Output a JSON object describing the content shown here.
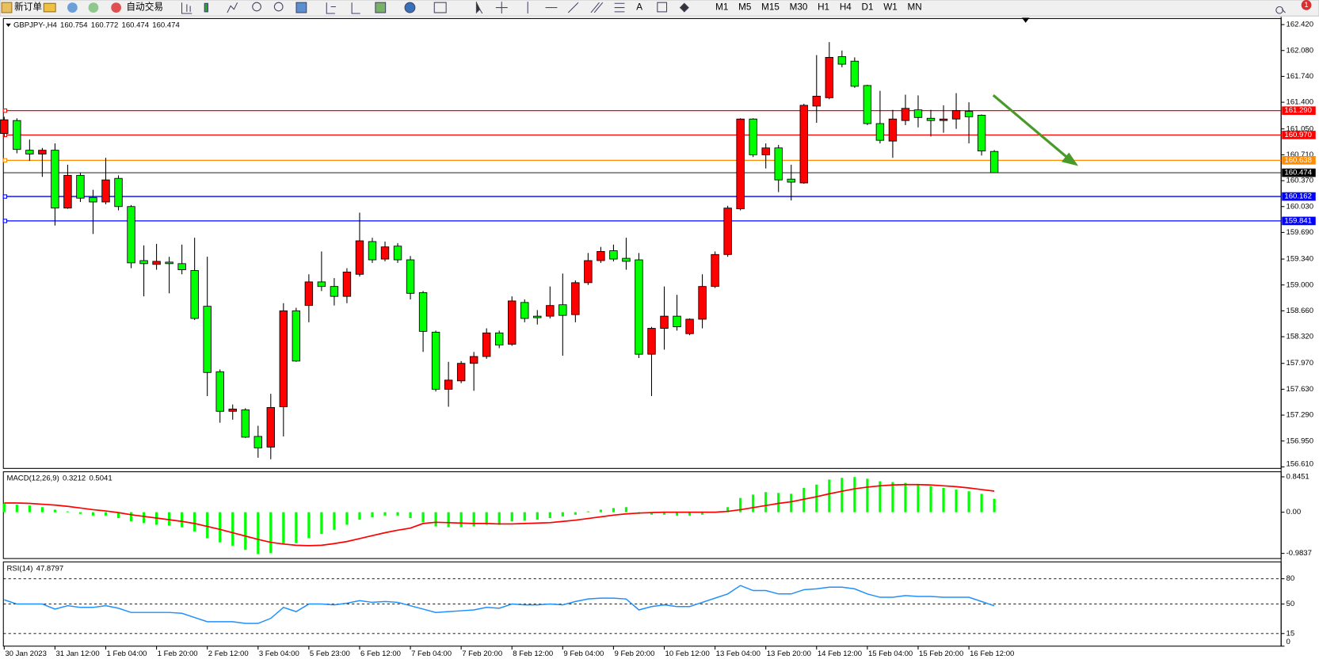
{
  "toolbar": {
    "new_order": "新订单",
    "auto_trading": "自动交易",
    "timeframes": [
      "M1",
      "M5",
      "M15",
      "M30",
      "H1",
      "H4",
      "D1",
      "W1",
      "MN"
    ],
    "text_tool": "A",
    "notifications": 1
  },
  "chart_data": [
    {
      "type": "candlestick",
      "title": "GBPJPY-,H4",
      "up_color": "#ff0000",
      "down_color": "#00ff00",
      "categories": [
        "30 Jan 2023",
        null,
        null,
        null,
        "31 Jan 12:00",
        null,
        null,
        null,
        "1 Feb 04:00",
        null,
        null,
        null,
        "1 Feb 20:00",
        null,
        null,
        null,
        "2 Feb 12:00",
        null,
        null,
        null,
        "3 Feb 04:00",
        null,
        null,
        null,
        "5 Feb 23:00",
        null,
        null,
        null,
        "6 Feb 12:00",
        null,
        null,
        null,
        "7 Feb 04:00",
        null,
        null,
        null,
        "7 Feb 20:00",
        null,
        null,
        null,
        "8 Feb 12:00",
        null,
        null,
        null,
        "9 Feb 04:00",
        null,
        null,
        null,
        "9 Feb 20:00",
        null,
        null,
        null,
        "10 Feb 12:00",
        null,
        null,
        null,
        "13 Feb 04:00",
        null,
        null,
        null,
        "13 Feb 20:00",
        null,
        null,
        null,
        "14 Feb 12:00",
        null,
        null,
        null,
        "15 Feb 04:00",
        null,
        null,
        null,
        "15 Feb 20:00",
        null,
        null,
        null,
        "16 Feb 12:00",
        null,
        null
      ],
      "open": [
        160.99,
        161.16,
        160.77,
        160.72,
        160.77,
        160.01,
        160.44,
        160.15,
        160.09,
        160.4,
        160.03,
        159.32,
        159.27,
        159.3,
        159.28,
        159.19,
        158.72,
        157.86,
        157.34,
        157.36,
        157.01,
        156.87,
        157.4,
        158.66,
        158.73,
        159.04,
        158.98,
        158.85,
        159.14,
        159.57,
        159.34,
        159.51,
        159.33,
        158.9,
        158.38,
        157.63,
        157.74,
        157.97,
        158.06,
        158.37,
        158.22,
        158.77,
        158.59,
        158.59,
        158.74,
        158.61,
        159.03,
        159.32,
        159.45,
        159.35,
        159.33,
        158.09,
        158.43,
        158.59,
        158.36,
        158.55,
        158.98,
        159.4,
        160.0,
        161.18,
        160.71,
        160.8,
        160.39,
        160.34,
        161.35,
        161.46,
        162.0,
        161.94,
        161.62,
        161.12,
        160.89,
        161.16,
        161.3,
        161.19,
        161.16,
        161.18,
        161.28,
        161.23,
        160.754
      ],
      "high": [
        161.21,
        161.19,
        160.91,
        160.8,
        160.86,
        160.58,
        160.47,
        160.25,
        160.67,
        160.44,
        160.05,
        159.52,
        159.54,
        159.37,
        159.53,
        159.62,
        159.37,
        157.89,
        157.43,
        157.38,
        157.15,
        157.57,
        158.76,
        158.7,
        159.14,
        159.44,
        159.09,
        159.22,
        159.95,
        159.62,
        159.57,
        159.55,
        159.38,
        158.92,
        158.4,
        157.99,
        158.0,
        158.12,
        158.43,
        158.4,
        158.85,
        158.81,
        158.67,
        158.98,
        159.15,
        159.06,
        159.42,
        159.5,
        159.53,
        159.62,
        159.42,
        158.45,
        158.98,
        158.87,
        158.56,
        159.14,
        159.44,
        160.04,
        161.19,
        161.19,
        160.86,
        160.84,
        160.58,
        161.38,
        162.02,
        162.19,
        162.08,
        161.99,
        161.63,
        161.55,
        161.3,
        161.5,
        161.49,
        161.3,
        161.36,
        161.52,
        161.4,
        161.24,
        160.772
      ],
      "low": [
        160.95,
        160.73,
        160.63,
        160.42,
        159.78,
        160.0,
        160.09,
        159.67,
        160.06,
        159.98,
        159.22,
        158.85,
        159.2,
        158.89,
        159.14,
        158.54,
        157.54,
        157.19,
        157.23,
        156.99,
        156.73,
        156.71,
        157.01,
        157.99,
        158.51,
        158.92,
        158.73,
        158.76,
        159.11,
        159.29,
        159.31,
        159.29,
        158.81,
        158.12,
        157.6,
        157.4,
        157.71,
        157.61,
        158.03,
        158.17,
        158.2,
        158.51,
        158.48,
        158.56,
        158.07,
        158.51,
        159.0,
        159.29,
        159.31,
        159.2,
        158.04,
        157.54,
        158.15,
        158.4,
        158.34,
        158.43,
        158.96,
        159.37,
        159.98,
        160.68,
        160.53,
        160.22,
        160.11,
        160.33,
        161.13,
        161.44,
        161.86,
        161.59,
        161.1,
        160.86,
        160.67,
        161.1,
        161.07,
        160.95,
        161.0,
        161.05,
        160.86,
        160.7,
        160.474
      ],
      "close": [
        161.17,
        160.78,
        160.72,
        160.77,
        160.01,
        160.44,
        160.14,
        160.09,
        160.38,
        160.03,
        159.29,
        159.28,
        159.31,
        159.28,
        159.2,
        158.56,
        157.85,
        157.34,
        157.37,
        157.0,
        156.86,
        157.39,
        158.66,
        158.0,
        159.04,
        158.98,
        158.85,
        159.17,
        159.58,
        159.33,
        159.5,
        159.33,
        158.89,
        158.39,
        157.63,
        157.75,
        157.97,
        158.06,
        158.37,
        158.21,
        158.79,
        158.56,
        158.57,
        158.73,
        158.6,
        159.03,
        159.32,
        159.44,
        159.34,
        159.31,
        158.09,
        158.43,
        158.59,
        158.45,
        158.55,
        158.98,
        159.4,
        160.01,
        161.18,
        160.71,
        160.8,
        160.38,
        160.35,
        161.36,
        161.48,
        161.99,
        161.9,
        161.61,
        161.12,
        160.9,
        161.18,
        161.32,
        161.2,
        161.16,
        161.18,
        161.29,
        161.21,
        160.76,
        160.474
      ],
      "ylim": [
        156.59,
        162.5
      ],
      "yticks": [
        {
          "value": 162.42,
          "label": "162.420"
        },
        {
          "value": 162.08,
          "label": "162.080"
        },
        {
          "value": 161.74,
          "label": "161.740"
        },
        {
          "value": 161.4,
          "label": "161.400"
        },
        {
          "value": 161.05,
          "label": "161.050"
        },
        {
          "value": 160.71,
          "label": "160.710"
        },
        {
          "value": 160.37,
          "label": "160.370"
        },
        {
          "value": 160.03,
          "label": "160.030"
        },
        {
          "value": 159.69,
          "label": "159.690"
        },
        {
          "value": 159.34,
          "label": "159.340"
        },
        {
          "value": 159.0,
          "label": "159.000"
        },
        {
          "value": 158.66,
          "label": "158.660"
        },
        {
          "value": 158.32,
          "label": "158.320"
        },
        {
          "value": 157.97,
          "label": "157.970"
        },
        {
          "value": 157.63,
          "label": "157.630"
        },
        {
          "value": 157.29,
          "label": "157.290"
        },
        {
          "value": 156.95,
          "label": "156.950"
        },
        {
          "value": 156.61,
          "label": "156.610"
        }
      ],
      "levels": [
        {
          "value": 161.29,
          "label": "161.290",
          "color": "#ff0000"
        },
        {
          "value": 160.97,
          "label": "160.970",
          "color": "#ff0000"
        },
        {
          "value": 160.638,
          "label": "160.638",
          "color": "#ff8c00"
        },
        {
          "value": 160.162,
          "label": "160.162",
          "color": "#0000ff"
        },
        {
          "value": 159.841,
          "label": "159.841",
          "color": "#0000ff"
        }
      ]
    },
    {
      "type": "macd",
      "title": "MACD(12,26,9)",
      "histogram_color": "#00ff00",
      "signal_color": "#ff0000",
      "histogram": [
        0.2,
        0.18,
        0.16,
        0.12,
        0.06,
        0.02,
        -0.04,
        -0.08,
        -0.08,
        -0.14,
        -0.22,
        -0.26,
        -0.3,
        -0.32,
        -0.36,
        -0.46,
        -0.62,
        -0.72,
        -0.8,
        -0.9,
        -1.0,
        -0.98,
        -0.76,
        -0.74,
        -0.62,
        -0.52,
        -0.42,
        -0.3,
        -0.18,
        -0.12,
        -0.08,
        -0.08,
        -0.14,
        -0.24,
        -0.34,
        -0.36,
        -0.36,
        -0.34,
        -0.3,
        -0.3,
        -0.22,
        -0.2,
        -0.18,
        -0.14,
        -0.1,
        -0.06,
        0.02,
        0.06,
        0.1,
        0.12,
        -0.04,
        -0.06,
        -0.06,
        -0.08,
        -0.08,
        -0.06,
        0.0,
        0.12,
        0.34,
        0.42,
        0.48,
        0.46,
        0.44,
        0.58,
        0.66,
        0.78,
        0.82,
        0.84,
        0.8,
        0.74,
        0.72,
        0.7,
        0.66,
        0.62,
        0.58,
        0.54,
        0.5,
        0.44,
        0.3212
      ],
      "signal": [
        0.22,
        0.22,
        0.21,
        0.19,
        0.17,
        0.14,
        0.1,
        0.06,
        0.03,
        -0.01,
        -0.06,
        -0.1,
        -0.14,
        -0.18,
        -0.22,
        -0.27,
        -0.34,
        -0.41,
        -0.49,
        -0.57,
        -0.65,
        -0.72,
        -0.76,
        -0.79,
        -0.8,
        -0.79,
        -0.75,
        -0.7,
        -0.63,
        -0.56,
        -0.49,
        -0.43,
        -0.38,
        -0.27,
        -0.24,
        -0.25,
        -0.26,
        -0.27,
        -0.27,
        -0.28,
        -0.28,
        -0.27,
        -0.26,
        -0.25,
        -0.22,
        -0.19,
        -0.15,
        -0.11,
        -0.07,
        -0.04,
        -0.02,
        -0.01,
        0.0,
        0.0,
        0.0,
        0.0,
        0.0,
        0.02,
        0.06,
        0.11,
        0.16,
        0.21,
        0.25,
        0.31,
        0.37,
        0.44,
        0.5,
        0.56,
        0.6,
        0.63,
        0.65,
        0.66,
        0.66,
        0.65,
        0.63,
        0.61,
        0.58,
        0.54,
        0.5041
      ],
      "ylim": [
        -1.107,
        0.966
      ],
      "yticks": [
        0.8451,
        {
          "value": 0,
          "label": "0.00"
        },
        -0.9837
      ]
    },
    {
      "type": "line",
      "title": "RSI(14)",
      "color": "#1e90ff",
      "values": [
        55,
        50,
        50,
        50,
        44,
        48,
        46,
        46,
        48,
        45,
        40,
        40,
        40,
        40,
        39,
        34,
        29,
        29,
        29,
        27,
        27,
        33,
        46,
        41,
        50,
        50,
        49,
        51,
        54,
        52,
        53,
        52,
        48,
        44,
        40,
        41,
        42,
        43,
        46,
        45,
        50,
        49,
        49,
        50,
        49,
        53,
        56,
        57,
        57,
        56,
        43,
        47,
        49,
        47,
        47,
        52,
        57,
        62,
        72,
        66,
        66,
        62,
        62,
        67,
        68,
        70,
        70,
        68,
        62,
        58,
        58,
        60,
        59,
        59,
        58,
        58,
        58,
        53,
        47.8797
      ],
      "ylim": [
        0,
        100
      ],
      "yticks": [
        80,
        50,
        15,
        0
      ]
    }
  ]
}
